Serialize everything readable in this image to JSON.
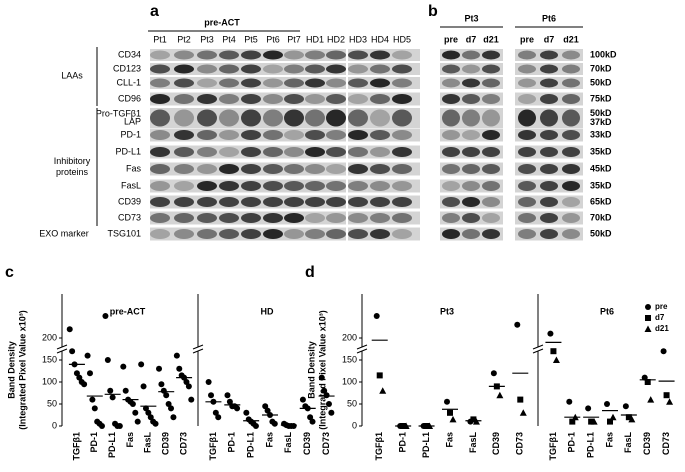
{
  "blot_a": {
    "label": "a",
    "group_header": "pre-ACT",
    "columns": [
      "Pt1",
      "Pt2",
      "Pt3",
      "Pt4",
      "Pt5",
      "Pt6",
      "Pt7",
      "HD1",
      "HD2",
      "HD3",
      "HD4",
      "HD5"
    ],
    "groups": [
      [
        "LAAs"
      ],
      [
        "Inhibitory",
        "proteins"
      ],
      [
        "EXO marker"
      ]
    ],
    "rows": [
      "CD34",
      "CD123",
      "CLL-1",
      "CD96",
      [
        "Pro-TGFβ1",
        "LAP"
      ],
      "PD-1",
      "PD-L1",
      "Fas",
      "FasL",
      "CD39",
      "CD73",
      "TSG101"
    ]
  },
  "blot_b": {
    "label": "b",
    "patients": [
      {
        "name": "Pt3",
        "columns": [
          "pre",
          "d7",
          "d21"
        ]
      },
      {
        "name": "Pt6",
        "columns": [
          "pre",
          "d7",
          "d21"
        ]
      }
    ],
    "sizes": [
      "100kD",
      "70kD",
      "50kD",
      "75kD",
      [
        "50kD",
        "37kD"
      ],
      "33kD",
      "35kD",
      "45kD",
      "35kD",
      "65kD",
      "70kD",
      "50kD"
    ]
  },
  "chart_data": [
    {
      "type": "dotplot",
      "panel_label": "c",
      "title": "pre-ACT",
      "ylabel": [
        "Band Density",
        "(Integrated Pixel Value x10³)"
      ],
      "categories": [
        "TGFβ1",
        "PD-1",
        "PD-L1",
        "Fas",
        "FasL",
        "CD39",
        "CD73"
      ],
      "points": [
        [
          220,
          170,
          140,
          120,
          110,
          100,
          95
        ],
        [
          160,
          120,
          60,
          40,
          10,
          5,
          0
        ],
        [
          250,
          150,
          80,
          65,
          5,
          0,
          0
        ],
        [
          135,
          80,
          60,
          55,
          50,
          30,
          10
        ],
        [
          140,
          90,
          40,
          30,
          20,
          10,
          5
        ],
        [
          130,
          95,
          80,
          70,
          50,
          40,
          20
        ],
        [
          160,
          130,
          115,
          110,
          100,
          90,
          60
        ]
      ],
      "means": [
        140,
        68,
        72,
        60,
        45,
        78,
        110
      ],
      "color": "#000000",
      "ylim": [
        0,
        300
      ],
      "yticks": [
        0,
        50,
        100,
        150,
        200
      ]
    },
    {
      "type": "dotplot",
      "title": "HD",
      "categories": [
        "TGFβ1",
        "PD-1",
        "PD-L1",
        "Fas",
        "FasL",
        "CD39",
        "CD73"
      ],
      "points": [
        [
          100,
          70,
          55,
          30,
          20
        ],
        [
          70,
          55,
          45,
          45,
          40
        ],
        [
          30,
          15,
          10,
          5,
          0
        ],
        [
          45,
          35,
          25,
          10,
          5
        ],
        [
          5,
          2,
          0,
          0,
          0
        ],
        [
          60,
          45,
          40,
          20,
          10
        ],
        [
          110,
          80,
          70,
          50,
          30
        ]
      ],
      "means": [
        55,
        48,
        12,
        25,
        2,
        40,
        68
      ],
      "color": "#000000",
      "ylim": [
        0,
        300
      ]
    },
    {
      "type": "dotplot",
      "panel_label": "d",
      "title": "Pt3",
      "ylabel": [
        "Band Density",
        "(Integrated Pixel Value x10³)"
      ],
      "categories": [
        "TGFβ1",
        "PD-1",
        "PD-L1",
        "Fas",
        "FasL",
        "CD39",
        "CD73"
      ],
      "series": [
        {
          "name": "pre",
          "marker": "circle",
          "values": [
            250,
            0,
            0,
            55,
            10,
            120,
            230
          ]
        },
        {
          "name": "d7",
          "marker": "square",
          "values": [
            115,
            0,
            0,
            30,
            15,
            90,
            60
          ]
        },
        {
          "name": "d21",
          "marker": "triangle",
          "values": [
            80,
            0,
            0,
            15,
            10,
            70,
            30
          ]
        }
      ],
      "means": [
        195,
        0,
        0,
        38,
        12,
        90,
        120
      ],
      "color": "#000000",
      "ylim": [
        0,
        300
      ],
      "yticks": [
        0,
        50,
        100,
        150,
        200
      ],
      "legend": "top-right"
    },
    {
      "type": "dotplot",
      "title": "Pt6",
      "categories": [
        "TGFβ1",
        "PD-1",
        "PD-L1",
        "Fas",
        "FasL",
        "CD39",
        "CD73"
      ],
      "series": [
        {
          "name": "pre",
          "marker": "circle",
          "values": [
            210,
            55,
            40,
            50,
            45,
            110,
            170
          ]
        },
        {
          "name": "d7",
          "marker": "square",
          "values": [
            170,
            10,
            10,
            10,
            20,
            100,
            70
          ]
        },
        {
          "name": "d21",
          "marker": "triangle",
          "values": [
            150,
            20,
            10,
            20,
            15,
            60,
            55
          ]
        }
      ],
      "means": [
        190,
        20,
        20,
        35,
        25,
        105,
        102
      ],
      "color": "#000000",
      "ylim": [
        0,
        300
      ]
    }
  ]
}
